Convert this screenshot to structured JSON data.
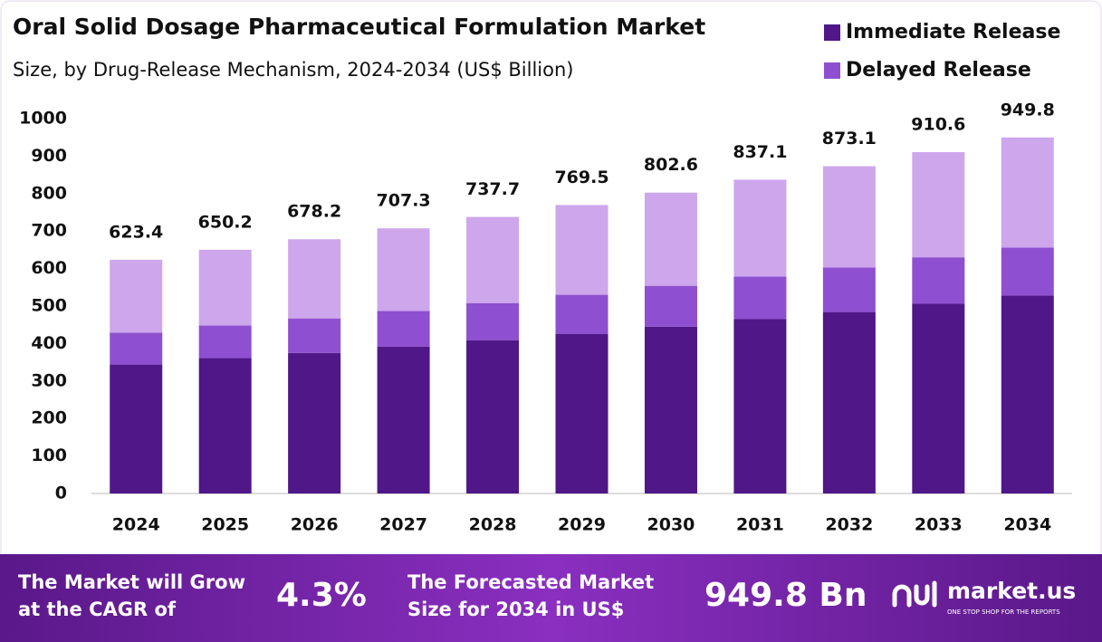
{
  "chart_data": {
    "type": "stacked-bar",
    "title": "Oral Solid Dosage Pharmaceutical Formulation Market",
    "subtitle": "Size, by Drug-Release Mechanism, 2024-2034 (US$ Billion)",
    "categories": [
      "2024",
      "2025",
      "2026",
      "2027",
      "2028",
      "2029",
      "2030",
      "2031",
      "2032",
      "2033",
      "2034"
    ],
    "series": [
      {
        "name": "Immediate Release",
        "color": "#4f1787",
        "values": [
          344,
          361,
          375,
          392,
          409,
          426,
          445,
          465,
          484,
          506,
          528
        ]
      },
      {
        "name": "Delayed Release",
        "color": "#8e4fd0",
        "values": [
          85,
          87,
          92,
          95,
          99,
          104,
          109,
          114,
          119,
          124,
          128
        ]
      },
      {
        "name": null,
        "color": "#cda6ec",
        "values": [
          194.4,
          202.2,
          211.2,
          220.3,
          229.7,
          239.5,
          248.6,
          258.1,
          270.1,
          280.6,
          293.8
        ]
      }
    ],
    "totals": [
      623.4,
      650.2,
      678.2,
      707.3,
      737.7,
      769.5,
      802.6,
      837.1,
      873.1,
      910.6,
      949.8
    ],
    "ylim": [
      0,
      1000
    ],
    "yticks": [
      0,
      100,
      200,
      300,
      400,
      500,
      600,
      700,
      800,
      900,
      1000
    ],
    "grid": false,
    "legend": "top-right"
  },
  "footer": {
    "cagr_label": [
      "The Market will Grow",
      "at the CAGR of"
    ],
    "cagr_value": "4.3%",
    "size_label": [
      "The Forecasted Market",
      "Size for 2034 in US$"
    ],
    "size_value": "949.8 Bn",
    "brand": "market.us",
    "tagline": "ONE STOP SHOP FOR THE REPORTS"
  }
}
